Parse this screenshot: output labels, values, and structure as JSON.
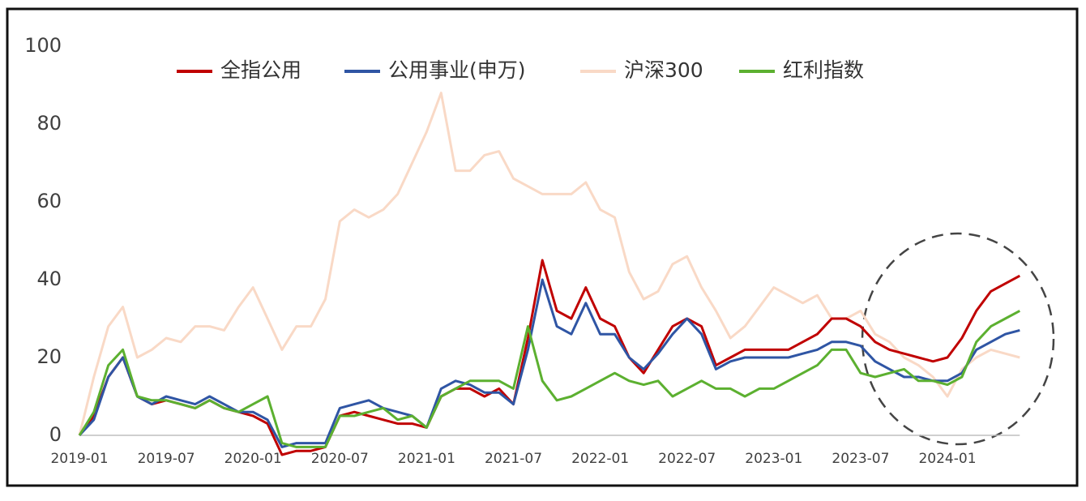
{
  "chart_data": {
    "type": "line",
    "categories": [
      "2019-01",
      null,
      null,
      null,
      null,
      null,
      "2019-07",
      null,
      null,
      null,
      null,
      null,
      "2020-01",
      null,
      null,
      null,
      null,
      null,
      "2020-07",
      null,
      null,
      null,
      null,
      null,
      "2021-01",
      null,
      null,
      null,
      null,
      null,
      "2021-07",
      null,
      null,
      null,
      null,
      null,
      "2022-01",
      null,
      null,
      null,
      null,
      null,
      "2022-07",
      null,
      null,
      null,
      null,
      null,
      "2023-01",
      null,
      null,
      null,
      null,
      null,
      "2023-07",
      null,
      null,
      null,
      null,
      null,
      "2024-01",
      null,
      null,
      null,
      null,
      null
    ],
    "series": [
      {
        "name": "全指公用",
        "color": "#c00000",
        "values": [
          0,
          5,
          15,
          20,
          10,
          8,
          9,
          8,
          7,
          9,
          7,
          6,
          5,
          3,
          -5,
          -4,
          -4,
          -3,
          5,
          6,
          5,
          4,
          3,
          3,
          2,
          10,
          12,
          12,
          10,
          12,
          8,
          25,
          45,
          32,
          30,
          38,
          30,
          28,
          20,
          16,
          22,
          28,
          30,
          28,
          18,
          20,
          22,
          22,
          22,
          22,
          24,
          26,
          30,
          30,
          28,
          24,
          22,
          21,
          20,
          19,
          20,
          25,
          32,
          37,
          39,
          41
        ]
      },
      {
        "name": "公用事业(申万)",
        "color": "#2f55a4",
        "values": [
          0,
          4,
          15,
          20,
          10,
          8,
          10,
          9,
          8,
          10,
          8,
          6,
          6,
          4,
          -3,
          -2,
          -2,
          -2,
          7,
          8,
          9,
          7,
          6,
          5,
          2,
          12,
          14,
          13,
          11,
          11,
          8,
          22,
          40,
          28,
          26,
          34,
          26,
          26,
          20,
          17,
          21,
          26,
          30,
          26,
          17,
          19,
          20,
          20,
          20,
          20,
          21,
          22,
          24,
          24,
          23,
          19,
          17,
          15,
          15,
          14,
          14,
          16,
          22,
          24,
          26,
          27
        ]
      },
      {
        "name": "沪深300",
        "color": "#f9d9c6",
        "values": [
          0,
          15,
          28,
          33,
          20,
          22,
          25,
          24,
          28,
          28,
          27,
          33,
          38,
          30,
          22,
          28,
          28,
          35,
          55,
          58,
          56,
          58,
          62,
          70,
          78,
          88,
          68,
          68,
          72,
          73,
          66,
          64,
          62,
          62,
          62,
          65,
          58,
          56,
          42,
          35,
          37,
          44,
          46,
          38,
          32,
          25,
          28,
          33,
          38,
          36,
          34,
          36,
          30,
          30,
          32,
          26,
          24,
          20,
          18,
          15,
          10,
          17,
          20,
          22,
          21,
          20
        ]
      },
      {
        "name": "红利指数",
        "color": "#5cb030",
        "values": [
          0,
          6,
          18,
          22,
          10,
          9,
          9,
          8,
          7,
          9,
          7,
          6,
          8,
          10,
          -2,
          -3,
          -3,
          -3,
          5,
          5,
          6,
          7,
          4,
          5,
          2,
          10,
          12,
          14,
          14,
          14,
          12,
          28,
          14,
          9,
          10,
          12,
          14,
          16,
          14,
          13,
          14,
          10,
          12,
          14,
          12,
          12,
          10,
          12,
          12,
          14,
          16,
          18,
          22,
          22,
          16,
          15,
          16,
          17,
          14,
          14,
          13,
          15,
          24,
          28,
          30,
          32
        ]
      }
    ],
    "ylim": [
      -8,
      100
    ],
    "yticks": [
      0,
      20,
      40,
      60,
      80,
      100
    ],
    "grid": false,
    "legend": "top"
  }
}
